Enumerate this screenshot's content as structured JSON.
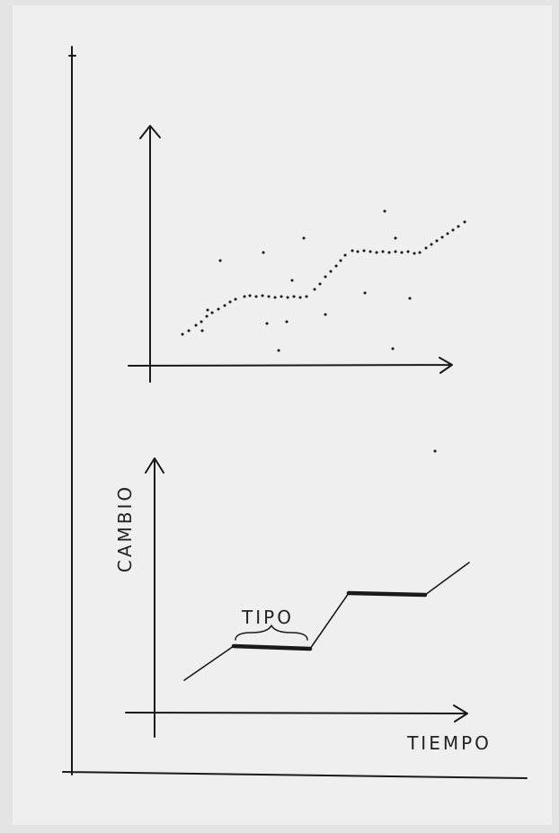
{
  "labels": {
    "y_axis": "CAMBIO",
    "bracket": "TIPO",
    "x_axis": "TIEMPO"
  }
}
